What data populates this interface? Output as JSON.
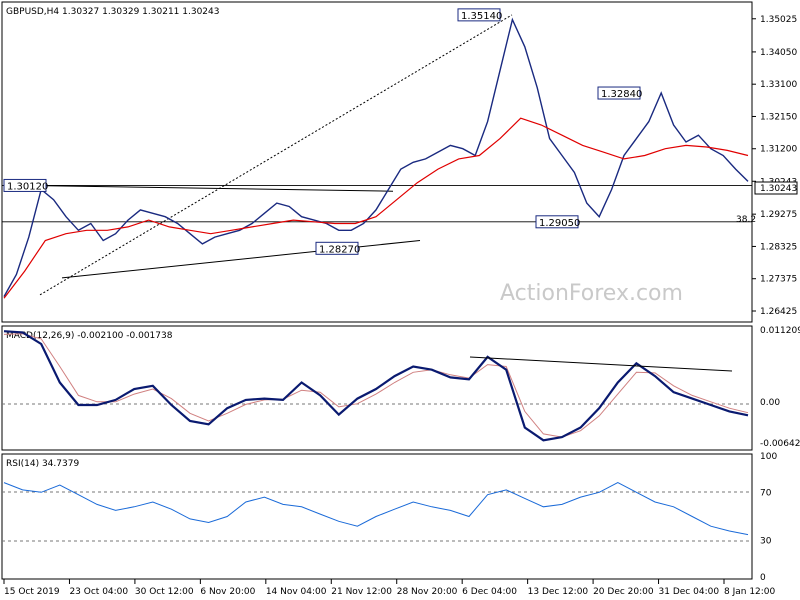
{
  "chart_data": [
    {
      "type": "candlestick",
      "title": "GBPUSD,H4  1.30327 1.30329 1.30211 1.30243",
      "watermark": "ActionForex.com",
      "price_axis": {
        "ylim": [
          1.2616,
          1.3546
        ],
        "ticks": [
          "1.35025",
          "1.34050",
          "1.33100",
          "1.32150",
          "1.31200",
          "1.30243",
          "1.29275",
          "1.28325",
          "1.27375",
          "1.26425"
        ]
      },
      "current_price": "1.30243",
      "fib_label": "38.2",
      "levels": [
        "1.30120",
        "1.29050"
      ],
      "annotations": [
        {
          "text": "1.35140",
          "value": 1.3514
        },
        {
          "text": "1.32840",
          "value": 1.3284
        },
        {
          "text": "1.29050",
          "value": 1.2905
        },
        {
          "text": "1.28270",
          "value": 1.2827
        },
        {
          "text": "1.30120",
          "value": 1.3012
        }
      ],
      "path_1": [
        [
          0,
          1.2685
        ],
        [
          6,
          1.275
        ],
        [
          12,
          1.286
        ],
        [
          18,
          1.3
        ],
        [
          24,
          1.297
        ],
        [
          30,
          1.292
        ],
        [
          36,
          1.288
        ],
        [
          42,
          1.29
        ],
        [
          48,
          1.285
        ],
        [
          54,
          1.287
        ],
        [
          60,
          1.291
        ],
        [
          66,
          1.294
        ],
        [
          72,
          1.293
        ],
        [
          78,
          1.292
        ],
        [
          84,
          1.29
        ],
        [
          90,
          1.287
        ],
        [
          96,
          1.284
        ],
        [
          102,
          1.286
        ],
        [
          108,
          1.287
        ],
        [
          114,
          1.288
        ],
        [
          120,
          1.29
        ],
        [
          126,
          1.293
        ],
        [
          132,
          1.296
        ],
        [
          138,
          1.295
        ],
        [
          144,
          1.292
        ],
        [
          150,
          1.291
        ],
        [
          156,
          1.29
        ],
        [
          162,
          1.288
        ],
        [
          168,
          1.288
        ],
        [
          174,
          1.29
        ],
        [
          180,
          1.294
        ],
        [
          186,
          1.3
        ],
        [
          192,
          1.306
        ],
        [
          198,
          1.308
        ],
        [
          204,
          1.309
        ],
        [
          210,
          1.311
        ],
        [
          216,
          1.313
        ],
        [
          222,
          1.312
        ],
        [
          228,
          1.31
        ],
        [
          234,
          1.32
        ],
        [
          240,
          1.335
        ],
        [
          246,
          1.35
        ],
        [
          252,
          1.342
        ],
        [
          258,
          1.33
        ],
        [
          264,
          1.315
        ],
        [
          270,
          1.31
        ],
        [
          276,
          1.305
        ],
        [
          282,
          1.296
        ],
        [
          288,
          1.292
        ],
        [
          294,
          1.3
        ],
        [
          300,
          1.31
        ],
        [
          306,
          1.315
        ],
        [
          312,
          1.32
        ],
        [
          318,
          1.3284
        ],
        [
          324,
          1.319
        ],
        [
          330,
          1.314
        ],
        [
          336,
          1.316
        ],
        [
          342,
          1.312
        ],
        [
          348,
          1.31
        ],
        [
          354,
          1.306
        ],
        [
          360,
          1.3024
        ]
      ],
      "path_2": [
        [
          0,
          1.268
        ],
        [
          10,
          1.276
        ],
        [
          20,
          1.285
        ],
        [
          30,
          1.287
        ],
        [
          40,
          1.288
        ],
        [
          50,
          1.288
        ],
        [
          60,
          1.289
        ],
        [
          70,
          1.291
        ],
        [
          80,
          1.289
        ],
        [
          90,
          1.288
        ],
        [
          100,
          1.287
        ],
        [
          110,
          1.288
        ],
        [
          120,
          1.289
        ],
        [
          130,
          1.29
        ],
        [
          140,
          1.291
        ],
        [
          150,
          1.2905
        ],
        [
          160,
          1.29
        ],
        [
          170,
          1.29
        ],
        [
          180,
          1.292
        ],
        [
          190,
          1.297
        ],
        [
          200,
          1.302
        ],
        [
          210,
          1.306
        ],
        [
          220,
          1.309
        ],
        [
          230,
          1.31
        ],
        [
          240,
          1.315
        ],
        [
          250,
          1.321
        ],
        [
          260,
          1.319
        ],
        [
          270,
          1.316
        ],
        [
          280,
          1.313
        ],
        [
          290,
          1.311
        ],
        [
          300,
          1.309
        ],
        [
          310,
          1.31
        ],
        [
          320,
          1.312
        ],
        [
          330,
          1.313
        ],
        [
          340,
          1.3125
        ],
        [
          350,
          1.3115
        ],
        [
          360,
          1.31
        ]
      ]
    },
    {
      "type": "line",
      "title": "MACD(12,26,9) -0.002100 -0.001738",
      "ylim": [
        -0.0072,
        0.0115
      ],
      "ticks": [
        "0.011209",
        "0.00",
        "-0.00642"
      ],
      "macd": [
        [
          0,
          0.011
        ],
        [
          10,
          0.0108
        ],
        [
          20,
          0.009
        ],
        [
          30,
          0.003
        ],
        [
          40,
          -0.0005
        ],
        [
          50,
          -0.0005
        ],
        [
          60,
          0.0003
        ],
        [
          70,
          0.002
        ],
        [
          80,
          0.0025
        ],
        [
          90,
          -0.0005
        ],
        [
          100,
          -0.003
        ],
        [
          110,
          -0.0035
        ],
        [
          120,
          -0.001
        ],
        [
          130,
          0.0003
        ],
        [
          140,
          0.0005
        ],
        [
          150,
          0.0003
        ],
        [
          160,
          0.003
        ],
        [
          170,
          0.001
        ],
        [
          180,
          -0.002
        ],
        [
          190,
          0.0005
        ],
        [
          200,
          0.002
        ],
        [
          210,
          0.004
        ],
        [
          220,
          0.0055
        ],
        [
          230,
          0.005
        ],
        [
          240,
          0.0038
        ],
        [
          250,
          0.0035
        ],
        [
          260,
          0.007
        ],
        [
          270,
          0.005
        ],
        [
          280,
          -0.004
        ],
        [
          290,
          -0.006
        ],
        [
          300,
          -0.0055
        ],
        [
          310,
          -0.004
        ],
        [
          320,
          -0.001
        ],
        [
          330,
          0.003
        ],
        [
          340,
          0.006
        ],
        [
          350,
          0.004
        ],
        [
          360,
          0.0015
        ],
        [
          370,
          0.0005
        ],
        [
          380,
          -0.0005
        ],
        [
          390,
          -0.0015
        ],
        [
          400,
          -0.0021
        ]
      ],
      "signal": [
        [
          0,
          0.0105
        ],
        [
          10,
          0.0106
        ],
        [
          20,
          0.0098
        ],
        [
          30,
          0.0055
        ],
        [
          40,
          0.001
        ],
        [
          50,
          0.0
        ],
        [
          60,
          0.0
        ],
        [
          70,
          0.0012
        ],
        [
          80,
          0.002
        ],
        [
          90,
          0.0005
        ],
        [
          100,
          -0.0018
        ],
        [
          110,
          -0.003
        ],
        [
          120,
          -0.0018
        ],
        [
          130,
          -0.0004
        ],
        [
          140,
          0.0003
        ],
        [
          150,
          0.0004
        ],
        [
          160,
          0.0018
        ],
        [
          170,
          0.0015
        ],
        [
          180,
          -0.0008
        ],
        [
          190,
          -0.0003
        ],
        [
          200,
          0.0012
        ],
        [
          210,
          0.003
        ],
        [
          220,
          0.0046
        ],
        [
          230,
          0.005
        ],
        [
          240,
          0.0042
        ],
        [
          250,
          0.0037
        ],
        [
          260,
          0.0058
        ],
        [
          270,
          0.0055
        ],
        [
          280,
          -0.0015
        ],
        [
          290,
          -0.005
        ],
        [
          300,
          -0.0055
        ],
        [
          310,
          -0.0045
        ],
        [
          320,
          -0.0022
        ],
        [
          330,
          0.0012
        ],
        [
          340,
          0.0046
        ],
        [
          350,
          0.0045
        ],
        [
          360,
          0.0025
        ],
        [
          370,
          0.001
        ],
        [
          380,
          0.0
        ],
        [
          390,
          -0.001
        ],
        [
          400,
          -0.0017
        ]
      ]
    },
    {
      "type": "line",
      "title": "RSI(14) 34.7379",
      "ylim": [
        0,
        100
      ],
      "ticks": [
        "100",
        "70",
        "30",
        "0"
      ],
      "rsi": [
        [
          0,
          78
        ],
        [
          10,
          72
        ],
        [
          20,
          70
        ],
        [
          30,
          76
        ],
        [
          40,
          68
        ],
        [
          50,
          60
        ],
        [
          60,
          55
        ],
        [
          70,
          58
        ],
        [
          80,
          62
        ],
        [
          90,
          56
        ],
        [
          100,
          48
        ],
        [
          110,
          45
        ],
        [
          120,
          50
        ],
        [
          130,
          62
        ],
        [
          140,
          66
        ],
        [
          150,
          60
        ],
        [
          160,
          58
        ],
        [
          170,
          52
        ],
        [
          180,
          46
        ],
        [
          190,
          42
        ],
        [
          200,
          50
        ],
        [
          210,
          56
        ],
        [
          220,
          62
        ],
        [
          230,
          58
        ],
        [
          240,
          55
        ],
        [
          250,
          50
        ],
        [
          260,
          68
        ],
        [
          270,
          72
        ],
        [
          280,
          65
        ],
        [
          290,
          58
        ],
        [
          300,
          60
        ],
        [
          310,
          66
        ],
        [
          320,
          70
        ],
        [
          330,
          78
        ],
        [
          340,
          70
        ],
        [
          350,
          62
        ],
        [
          360,
          58
        ],
        [
          370,
          50
        ],
        [
          380,
          42
        ],
        [
          390,
          38
        ],
        [
          400,
          35
        ]
      ]
    },
    {
      "type": "axis",
      "x_ticks": [
        "15 Oct 2019",
        "23 Oct 04:00",
        "30 Oct 12:00",
        "6 Nov 20:00",
        "14 Nov 04:00",
        "21 Nov 12:00",
        "28 Nov 20:00",
        "6 Dec 04:00",
        "13 Dec 12:00",
        "20 Dec 20:00",
        "31 Dec 04:00",
        "8 Jan 12:00"
      ]
    }
  ]
}
